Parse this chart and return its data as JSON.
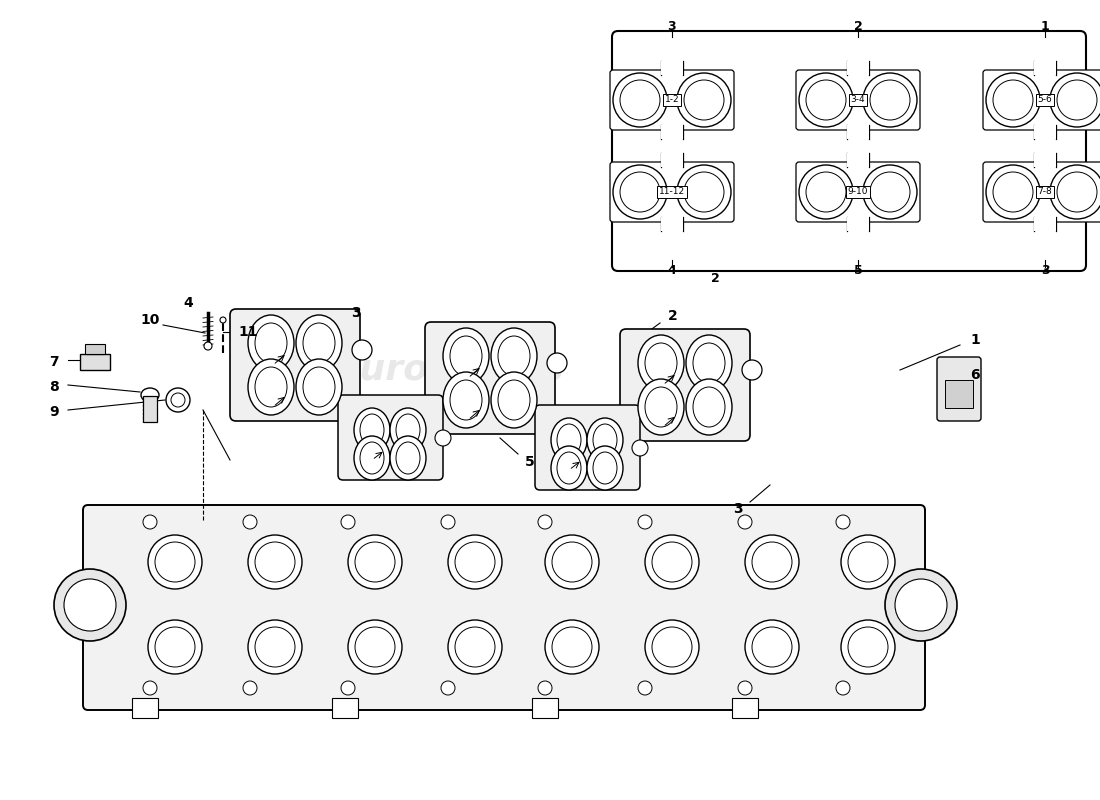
{
  "bg_color": "#ffffff",
  "line_color": "#000000",
  "watermark_color": "#cccccc",
  "watermark_alpha": 0.45,
  "part_labels": [
    "1",
    "2",
    "3",
    "4",
    "5",
    "6",
    "7",
    "8",
    "9",
    "10",
    "11"
  ],
  "inset_top_labels": [
    "3",
    "2",
    "1"
  ],
  "inset_bot_labels": [
    "4",
    "5",
    "3"
  ],
  "inset_pair_labels_top": [
    "1-2",
    "3-4",
    "5-6"
  ],
  "inset_pair_labels_bot": [
    "11-12",
    "9-10",
    "7-8"
  ]
}
